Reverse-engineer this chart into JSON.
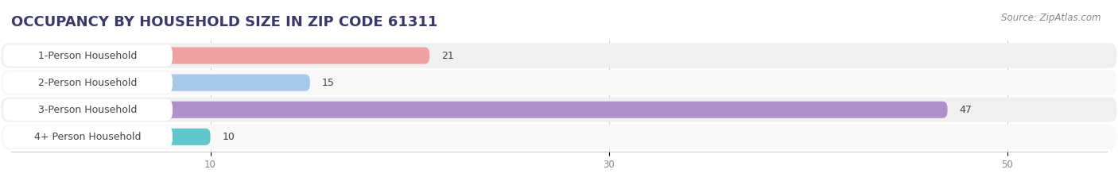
{
  "title": "OCCUPANCY BY HOUSEHOLD SIZE IN ZIP CODE 61311",
  "source": "Source: ZipAtlas.com",
  "categories": [
    "1-Person Household",
    "2-Person Household",
    "3-Person Household",
    "4+ Person Household"
  ],
  "values": [
    21,
    15,
    47,
    10
  ],
  "bar_colors": [
    "#f0a0a0",
    "#a8c8e8",
    "#b090c8",
    "#60c8cc"
  ],
  "xlim": [
    0,
    55
  ],
  "xticks": [
    10,
    30,
    50
  ],
  "row_bg_colors": [
    "#f0f0f0",
    "#f8f8f8",
    "#f0f0f0",
    "#f8f8f8"
  ],
  "title_fontsize": 13,
  "label_fontsize": 9,
  "value_fontsize": 9,
  "source_fontsize": 8.5,
  "title_color": "#3a3a6a",
  "label_color": "#444444",
  "tick_color": "#888888"
}
